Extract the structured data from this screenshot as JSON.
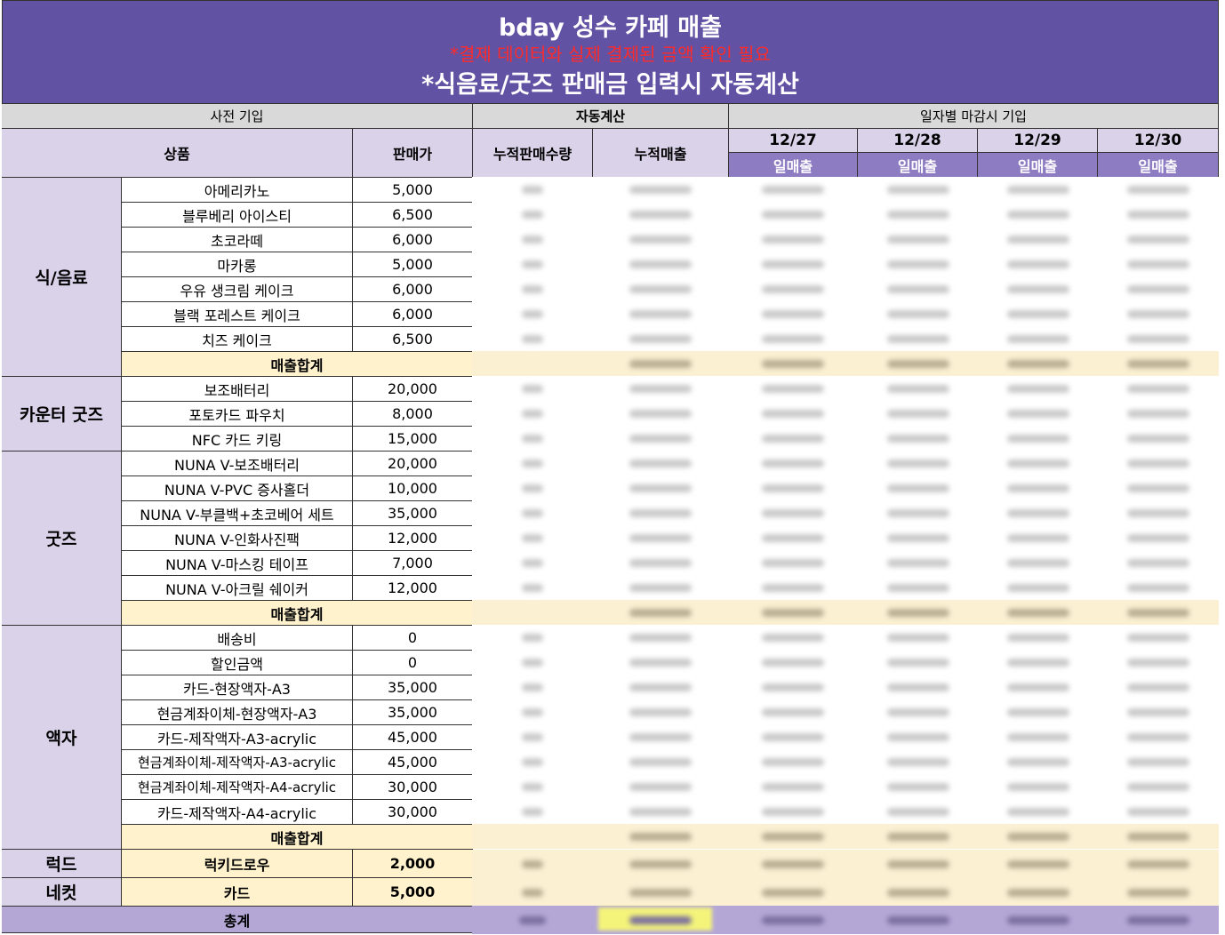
{
  "title": "bday 성수 카페 매출",
  "subtitle_red": "*결제 데이터와 실제 결제된 금액 확인 필요",
  "subtitle": "*식음료/굿즈 판매금 입력시 자동계산",
  "section_headers": {
    "pre": "사전 기입",
    "auto": "자동계산",
    "daily": "일자별 마감시 기입"
  },
  "columns": {
    "product": "상품",
    "price": "판매가",
    "qty": "누적판매수량",
    "revenue": "누적매출",
    "daily_sales": "일매출"
  },
  "dates": [
    "12/27",
    "12/28",
    "12/29",
    "12/30"
  ],
  "categories": {
    "food": "식/음료",
    "counter": "카운터 굿즈",
    "goods": "굿즈",
    "frame": "액자",
    "luck": "럭드",
    "necut": "네컷"
  },
  "food_items": [
    {
      "name": "아메리카노",
      "price": "5,000"
    },
    {
      "name": "블루베리 아이스티",
      "price": "6,500"
    },
    {
      "name": "초코라떼",
      "price": "6,000"
    },
    {
      "name": "마카롱",
      "price": "5,000"
    },
    {
      "name": "우유 생크림 케이크",
      "price": "6,000"
    },
    {
      "name": "블랙 포레스트 케이크",
      "price": "6,000"
    },
    {
      "name": "치즈 케이크",
      "price": "6,500"
    }
  ],
  "counter_items": [
    {
      "name": "보조배터리",
      "price": "20,000"
    },
    {
      "name": "포토카드 파우치",
      "price": "8,000"
    },
    {
      "name": "NFC 카드 키링",
      "price": "15,000"
    }
  ],
  "goods_items": [
    {
      "name": "NUNA V-보조배터리",
      "price": "20,000"
    },
    {
      "name": "NUNA V-PVC 증사홀더",
      "price": "10,000"
    },
    {
      "name": "NUNA V-부클백+초코베어 세트",
      "price": "35,000"
    },
    {
      "name": "NUNA V-인화사진팩",
      "price": "12,000"
    },
    {
      "name": "NUNA V-마스킹 테이프",
      "price": "7,000"
    },
    {
      "name": "NUNA V-아크릴 쉐이커",
      "price": "12,000"
    }
  ],
  "frame_items": [
    {
      "name": "배송비",
      "price": "0"
    },
    {
      "name": "할인금액",
      "price": "0"
    },
    {
      "name": "카드-현장액자-A3",
      "price": "35,000"
    },
    {
      "name": "현금계좌이체-현장액자-A3",
      "price": "35,000"
    },
    {
      "name": "카드-제작액자-A3-acrylic",
      "price": "45,000"
    },
    {
      "name": "현금계좌이체-제작액자-A3-acrylic",
      "price": "45,000"
    },
    {
      "name": "현금계좌이체-제작액자-A4-acrylic",
      "price": "30,000"
    },
    {
      "name": "카드-제작액자-A4-acrylic",
      "price": "30,000"
    }
  ],
  "luck_item": {
    "name": "럭키드로우",
    "price": "2,000"
  },
  "necut_item": {
    "name": "카드",
    "price": "5,000"
  },
  "subtotal_label": "매출합계",
  "total_label": "총계",
  "colors": {
    "banner": "#6152a4",
    "subtitle_red": "#ff0000",
    "header_lavender": "#d9d2e9",
    "date_purple": "#8e7cc3",
    "subtotal_cream": "#fff2cc",
    "total_purple": "#b4a7d6",
    "highlight_yellow": "#ffff00"
  }
}
